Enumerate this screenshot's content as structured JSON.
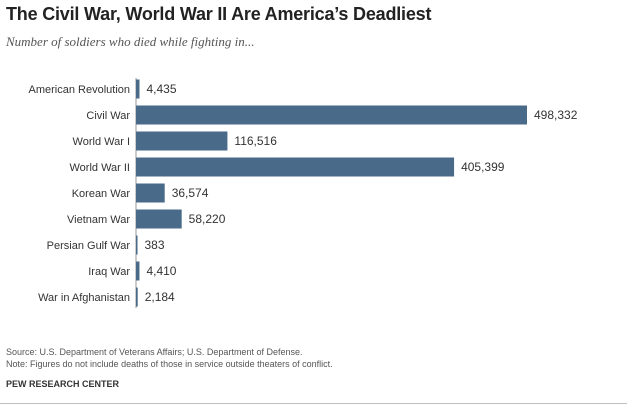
{
  "header": {
    "title": "The Civil War, World War II Are America’s Deadliest",
    "subtitle": "Number of soldiers who died while fighting in..."
  },
  "footer": {
    "source": "Source: U.S. Department of Veterans Affairs; U.S. Department of Defense.",
    "note": "Note: Figures do not include deaths of those in service outside theaters of conflict.",
    "brand": "PEW RESEARCH CENTER"
  },
  "colors": {
    "bar": "#4a6a89"
  },
  "chart_data": {
    "type": "bar",
    "orientation": "horizontal",
    "title": "The Civil War, World War II Are America’s Deadliest",
    "subtitle": "Number of soldiers who died while fighting in...",
    "xlabel": "",
    "ylabel": "",
    "categories": [
      "American Revolution",
      "Civil War",
      "World War I",
      "World War II",
      "Korean War",
      "Vietnam War",
      "Persian Gulf War",
      "Iraq War",
      "War in Afghanistan"
    ],
    "values": [
      4435,
      498332,
      116516,
      405399,
      36574,
      58220,
      383,
      4410,
      2184
    ],
    "value_labels": [
      "4,435",
      "498,332",
      "116,516",
      "405,399",
      "36,574",
      "58,220",
      "383",
      "4,410",
      "2,184"
    ],
    "xlim": [
      0,
      498332
    ],
    "grid": false,
    "legend": "none"
  }
}
